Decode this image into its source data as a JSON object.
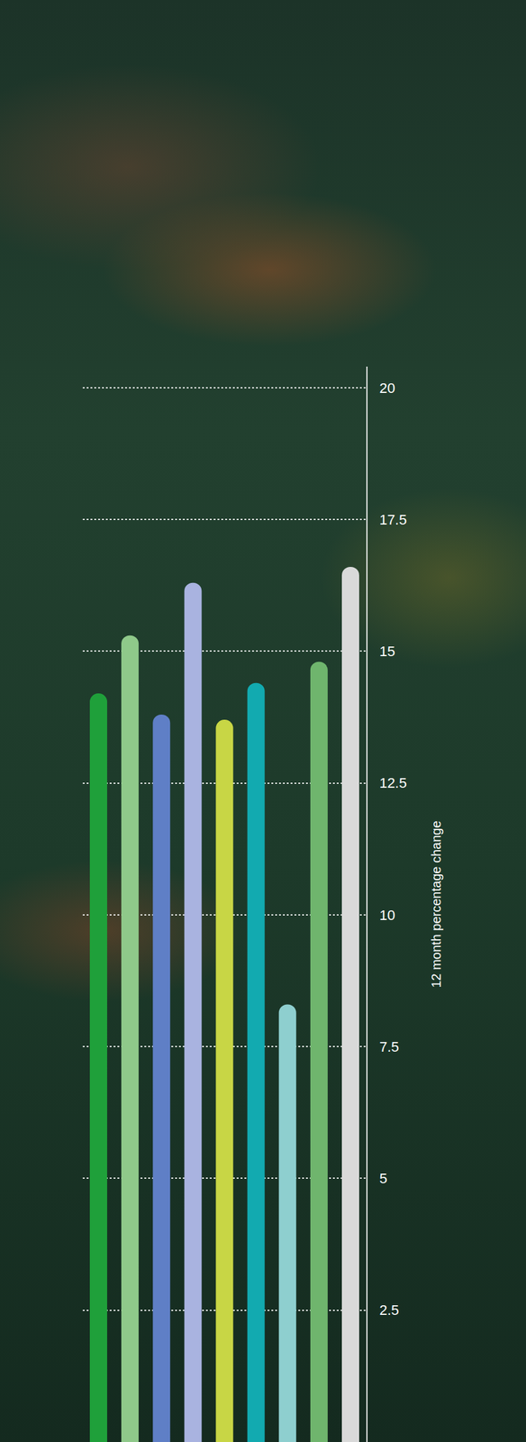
{
  "chart_data": {
    "type": "bar",
    "categories": [
      null,
      null,
      null,
      null,
      null,
      null,
      null,
      null,
      null
    ],
    "values": [
      14.2,
      15.3,
      13.8,
      16.3,
      13.7,
      14.4,
      8.3,
      14.8,
      16.6
    ],
    "colors": [
      "#1fa03a",
      "#8fc98a",
      "#5f7fc6",
      "#a9b3e0",
      "#c8d645",
      "#12aab0",
      "#8ecfcf",
      "#6fb56d",
      "#d9d9d9"
    ],
    "ylabel": "12 month percentage change",
    "ylim": [
      0,
      20.4
    ],
    "yticks": [
      2.5,
      5,
      7.5,
      10,
      12.5,
      15,
      17.5,
      20
    ],
    "grid": true,
    "tick_labels": "y"
  }
}
